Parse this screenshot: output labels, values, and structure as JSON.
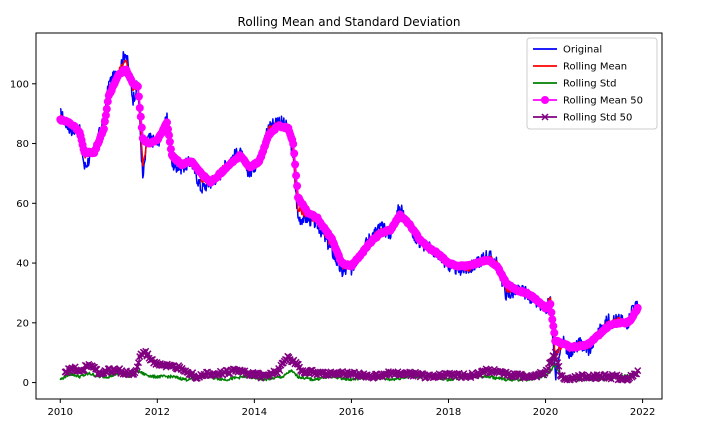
{
  "chart_data": {
    "type": "line",
    "title": "Rolling Mean and Standard Deviation",
    "xlabel": "",
    "ylabel": "",
    "xlim": [
      2009.5,
      2022.4
    ],
    "ylim": [
      -5.5,
      117
    ],
    "x_ticks": [
      2010,
      2012,
      2014,
      2016,
      2018,
      2020,
      2022
    ],
    "y_ticks": [
      0,
      20,
      40,
      60,
      80,
      100
    ],
    "grid": false,
    "legend_position": "top-right",
    "series": [
      {
        "name": "Original",
        "color": "#0000ff",
        "style": "line",
        "x": [
          2010.0,
          2010.2,
          2010.4,
          2010.5,
          2010.7,
          2010.9,
          2011.0,
          2011.2,
          2011.35,
          2011.5,
          2011.6,
          2011.7,
          2011.8,
          2012.0,
          2012.2,
          2012.3,
          2012.5,
          2012.7,
          2012.9,
          2013.1,
          2013.3,
          2013.5,
          2013.7,
          2013.9,
          2014.1,
          2014.3,
          2014.5,
          2014.7,
          2014.8,
          2014.9,
          2015.1,
          2015.3,
          2015.6,
          2015.8,
          2016.0,
          2016.2,
          2016.4,
          2016.6,
          2016.8,
          2017.0,
          2017.2,
          2017.4,
          2017.6,
          2017.8,
          2018.0,
          2018.2,
          2018.4,
          2018.6,
          2018.8,
          2019.0,
          2019.2,
          2019.4,
          2019.6,
          2019.8,
          2020.0,
          2020.1,
          2020.2,
          2020.35,
          2020.5,
          2020.7,
          2020.9,
          2021.1,
          2021.3,
          2021.5,
          2021.7,
          2021.8,
          2021.9
        ],
        "y": [
          90,
          85,
          84,
          72,
          78,
          88,
          100,
          104,
          111,
          95,
          100,
          68,
          82,
          80,
          88,
          73,
          72,
          74,
          65,
          67,
          70,
          75,
          77,
          70,
          75,
          86,
          88,
          85,
          75,
          55,
          55,
          53,
          44,
          37,
          38,
          44,
          49,
          52,
          50,
          59,
          52,
          47,
          45,
          43,
          39,
          38,
          38,
          40,
          43,
          40,
          29,
          31,
          30,
          27,
          24,
          28,
          2,
          14,
          10,
          13,
          11,
          17,
          21,
          21,
          20,
          26,
          25
        ]
      },
      {
        "name": "Rolling Mean",
        "color": "#ff0000",
        "style": "line",
        "x": [
          2010.0,
          2010.2,
          2010.4,
          2010.5,
          2010.7,
          2010.9,
          2011.0,
          2011.2,
          2011.35,
          2011.5,
          2011.6,
          2011.7,
          2011.8,
          2012.0,
          2012.2,
          2012.3,
          2012.5,
          2012.7,
          2012.9,
          2013.1,
          2013.3,
          2013.5,
          2013.7,
          2013.9,
          2014.1,
          2014.3,
          2014.5,
          2014.7,
          2014.8,
          2014.9,
          2015.1,
          2015.3,
          2015.6,
          2015.8,
          2016.0,
          2016.2,
          2016.4,
          2016.6,
          2016.8,
          2017.0,
          2017.2,
          2017.4,
          2017.6,
          2017.8,
          2018.0,
          2018.2,
          2018.4,
          2018.6,
          2018.8,
          2019.0,
          2019.2,
          2019.4,
          2019.6,
          2019.8,
          2020.0,
          2020.1,
          2020.2,
          2020.35,
          2020.5,
          2020.7,
          2020.9,
          2021.1,
          2021.3,
          2021.5,
          2021.7,
          2021.8,
          2021.9
        ],
        "y": [
          89,
          86,
          85,
          76,
          78,
          87,
          98,
          104,
          108,
          98,
          100,
          73,
          81,
          81,
          87,
          75,
          73,
          74,
          68,
          67,
          71,
          74,
          76,
          71,
          75,
          85,
          87,
          85,
          77,
          58,
          56,
          54,
          46,
          39,
          39,
          44,
          48,
          51,
          51,
          57,
          53,
          47,
          45,
          43,
          40,
          39,
          38,
          40,
          42,
          40,
          31,
          31,
          30,
          28,
          25,
          28,
          9,
          13,
          11,
          13,
          12,
          17,
          20,
          21,
          20,
          24,
          25
        ]
      },
      {
        "name": "Rolling Std",
        "color": "#008000",
        "style": "line",
        "x": [
          2010.0,
          2010.2,
          2010.4,
          2010.6,
          2010.8,
          2011.0,
          2011.2,
          2011.4,
          2011.6,
          2011.7,
          2011.9,
          2012.1,
          2012.3,
          2012.6,
          2013.0,
          2013.4,
          2013.8,
          2014.2,
          2014.6,
          2014.75,
          2014.9,
          2015.2,
          2015.6,
          2016.0,
          2016.4,
          2016.8,
          2017.2,
          2017.6,
          2018.0,
          2018.4,
          2018.8,
          2019.2,
          2019.6,
          2020.0,
          2020.2,
          2020.3,
          2020.5,
          2020.8,
          2021.2,
          2021.6,
          2021.9
        ],
        "y": [
          1,
          3,
          2,
          3,
          2,
          2,
          3,
          2,
          4,
          3,
          2,
          2,
          2,
          1,
          2,
          1,
          2,
          1,
          2,
          4,
          2,
          1,
          2,
          1,
          2,
          1,
          2,
          2,
          1,
          2,
          2,
          1,
          1,
          2,
          6,
          2,
          1,
          1,
          1,
          2,
          3
        ]
      },
      {
        "name": "Rolling Mean 50",
        "color": "#ff00ff",
        "style": "marker-o",
        "x": [
          2010.0,
          2010.2,
          2010.4,
          2010.5,
          2010.7,
          2010.9,
          2011.0,
          2011.2,
          2011.35,
          2011.5,
          2011.6,
          2011.7,
          2011.8,
          2012.0,
          2012.2,
          2012.3,
          2012.5,
          2012.7,
          2012.9,
          2013.1,
          2013.3,
          2013.5,
          2013.7,
          2013.9,
          2014.1,
          2014.3,
          2014.5,
          2014.7,
          2014.8,
          2014.9,
          2015.1,
          2015.3,
          2015.6,
          2015.8,
          2016.0,
          2016.2,
          2016.4,
          2016.6,
          2016.8,
          2017.0,
          2017.2,
          2017.4,
          2017.6,
          2017.8,
          2018.0,
          2018.2,
          2018.4,
          2018.6,
          2018.8,
          2019.0,
          2019.2,
          2019.4,
          2019.6,
          2019.8,
          2020.0,
          2020.1,
          2020.2,
          2020.35,
          2020.5,
          2020.7,
          2020.9,
          2021.1,
          2021.3,
          2021.5,
          2021.7,
          2021.8,
          2021.9
        ],
        "y": [
          88,
          87,
          84,
          77,
          77,
          85,
          96,
          103,
          105,
          100,
          99,
          82,
          80,
          81,
          87,
          76,
          73,
          74,
          70,
          67,
          70,
          73,
          76,
          72,
          74,
          83,
          86,
          85,
          80,
          62,
          57,
          55,
          48,
          40,
          39,
          43,
          47,
          50,
          51,
          56,
          53,
          48,
          45,
          43,
          40,
          39,
          39,
          40,
          41,
          39,
          33,
          31,
          30,
          28,
          25,
          26,
          14,
          13,
          12,
          12,
          13,
          16,
          19,
          20,
          20,
          22,
          25
        ]
      },
      {
        "name": "Rolling Std 50",
        "color": "#800080",
        "style": "marker-x",
        "x": [
          2010.1,
          2010.25,
          2010.4,
          2010.6,
          2010.8,
          2011.0,
          2011.2,
          2011.4,
          2011.55,
          2011.65,
          2011.75,
          2011.9,
          2012.1,
          2012.3,
          2012.5,
          2012.8,
          2013.0,
          2013.3,
          2013.6,
          2013.9,
          2014.2,
          2014.5,
          2014.7,
          2014.8,
          2015.0,
          2015.3,
          2015.6,
          2016.0,
          2016.4,
          2016.8,
          2017.2,
          2017.6,
          2018.0,
          2018.4,
          2018.8,
          2019.2,
          2019.6,
          2020.0,
          2020.2,
          2020.3,
          2020.45,
          2020.7,
          2021.0,
          2021.4,
          2021.7,
          2021.9
        ],
        "y": [
          3,
          5,
          4,
          6,
          3,
          4,
          4,
          3,
          3,
          9,
          10,
          7,
          6,
          5,
          5,
          2,
          3,
          3,
          4,
          3,
          2,
          4,
          9,
          7,
          4,
          3,
          3,
          3,
          2,
          3,
          3,
          2,
          3,
          2,
          4,
          3,
          2,
          3,
          10,
          3,
          1,
          2,
          2,
          2,
          1,
          4
        ]
      }
    ]
  }
}
